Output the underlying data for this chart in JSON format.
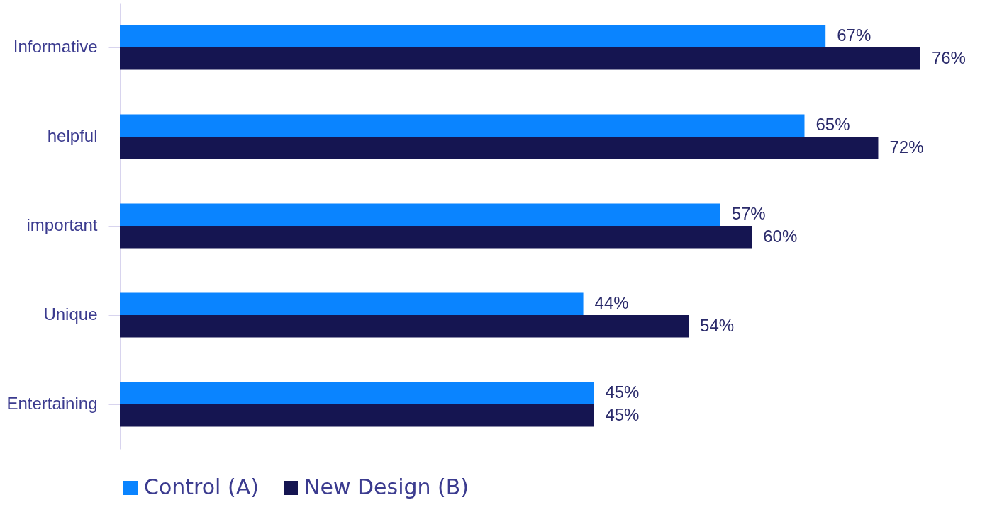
{
  "chart_data": {
    "type": "bar",
    "orientation": "horizontal",
    "categories": [
      "Informative",
      "helpful",
      "important",
      "Unique",
      "Entertaining"
    ],
    "series": [
      {
        "name": "Control (A)",
        "color": "#0a84ff",
        "values": [
          67,
          65,
          57,
          44,
          45
        ],
        "value_labels": [
          "67%",
          "65%",
          "57%",
          "44%",
          "45%"
        ]
      },
      {
        "name": "New Design (B)",
        "color": "#151551",
        "values": [
          76,
          72,
          60,
          54,
          45
        ],
        "value_labels": [
          "76%",
          "72%",
          "60%",
          "54%",
          "45%"
        ]
      }
    ],
    "legend": "bottom left",
    "grid": false
  }
}
